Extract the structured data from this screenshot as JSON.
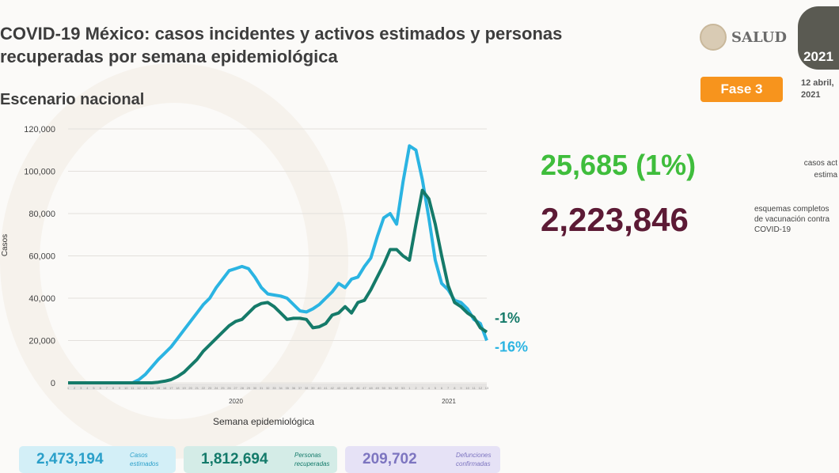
{
  "header": {
    "title_line1": "COVID-19 México: casos incidentes y activos estimados y personas",
    "title_line2": "recuperadas por semana epidemiológica",
    "subtitle": "Escenario nacional",
    "logo_text": "SALUD",
    "emblem_text": "2021",
    "phase": "Fase 3",
    "date_line1": "12 abril,",
    "date_line2": "2021"
  },
  "stats": {
    "active": "25,685 (1%)",
    "active_note": [
      "casos act",
      "estima"
    ],
    "vaccinated": "2,223,846",
    "vaccinated_note": [
      "esquemas completos",
      "de vacunación contra",
      "COVID-19"
    ]
  },
  "cards": [
    {
      "value": "2,473,194",
      "label1": "Casos",
      "label2": "estimados",
      "bg": "#d3eff7",
      "color": "#2a9fc9"
    },
    {
      "value": "1,812,694",
      "label1": "Personas",
      "label2": "recuperadas",
      "bg": "#d4ece7",
      "color": "#137a6a"
    },
    {
      "value": "209,702",
      "label1": "Defunciones",
      "label2": "confirmadas",
      "bg": "#e6e2f6",
      "color": "#7d75c0"
    }
  ],
  "chart_data": {
    "type": "line",
    "xlabel": "Semana epidemiológica",
    "ylabel": "Casos",
    "ylim": [
      0,
      120000
    ],
    "yticks": [
      "0",
      "20,000",
      "40,000",
      "60,000",
      "80,000",
      "100,000",
      "120,000"
    ],
    "ytick_values": [
      0,
      20000,
      40000,
      60000,
      80000,
      100000,
      120000
    ],
    "year_labels": [
      "2020",
      "2021"
    ],
    "grid": true,
    "categories": [
      "1",
      "2",
      "3",
      "4",
      "5",
      "6",
      "7",
      "8",
      "9",
      "10",
      "11",
      "12",
      "13",
      "14",
      "15",
      "16",
      "17",
      "18",
      "19",
      "20",
      "21",
      "22",
      "23",
      "24",
      "25",
      "26",
      "27",
      "28",
      "29",
      "30",
      "31",
      "32",
      "33",
      "34",
      "35",
      "36",
      "37",
      "38",
      "39",
      "40",
      "41",
      "42",
      "43",
      "44",
      "45",
      "46",
      "47",
      "48",
      "49",
      "50",
      "51",
      "52",
      "53",
      "1",
      "2",
      "3",
      "4",
      "5",
      "6",
      "7",
      "8",
      "9",
      "10",
      "11",
      "12",
      "13"
    ],
    "series": [
      {
        "color": "#2bb4e2",
        "end_label": "-16%",
        "values": [
          0,
          0,
          0,
          0,
          0,
          0,
          0,
          0,
          0,
          0,
          0,
          1500,
          4000,
          7500,
          11000,
          14000,
          17000,
          21000,
          25000,
          29000,
          33000,
          37000,
          40000,
          45000,
          49000,
          53000,
          54000,
          55000,
          54000,
          50000,
          45000,
          42000,
          41500,
          41000,
          40000,
          37000,
          34000,
          33500,
          35000,
          37000,
          40000,
          43000,
          47000,
          45000,
          49000,
          50000,
          55000,
          59000,
          69000,
          78000,
          80000,
          75000,
          95000,
          112000,
          110000,
          96000,
          78000,
          58000,
          47000,
          44000,
          39000,
          38000,
          35000,
          30000,
          28000,
          20000
        ]
      },
      {
        "color": "#157a69",
        "end_label": "-1%",
        "values": [
          0,
          0,
          0,
          0,
          0,
          0,
          0,
          0,
          0,
          0,
          0,
          0,
          0,
          0,
          300,
          800,
          1500,
          3000,
          5000,
          8000,
          11000,
          15000,
          18000,
          21000,
          24000,
          27000,
          29000,
          30000,
          33000,
          36000,
          37500,
          38000,
          36000,
          33000,
          30000,
          30500,
          30500,
          30000,
          26000,
          26500,
          28000,
          32000,
          33000,
          36000,
          33000,
          38000,
          39000,
          44000,
          50000,
          56000,
          63000,
          63000,
          60000,
          58000,
          75000,
          91000,
          87000,
          75000,
          60000,
          46000,
          38000,
          36000,
          33000,
          31000,
          26000,
          24000
        ]
      }
    ]
  }
}
